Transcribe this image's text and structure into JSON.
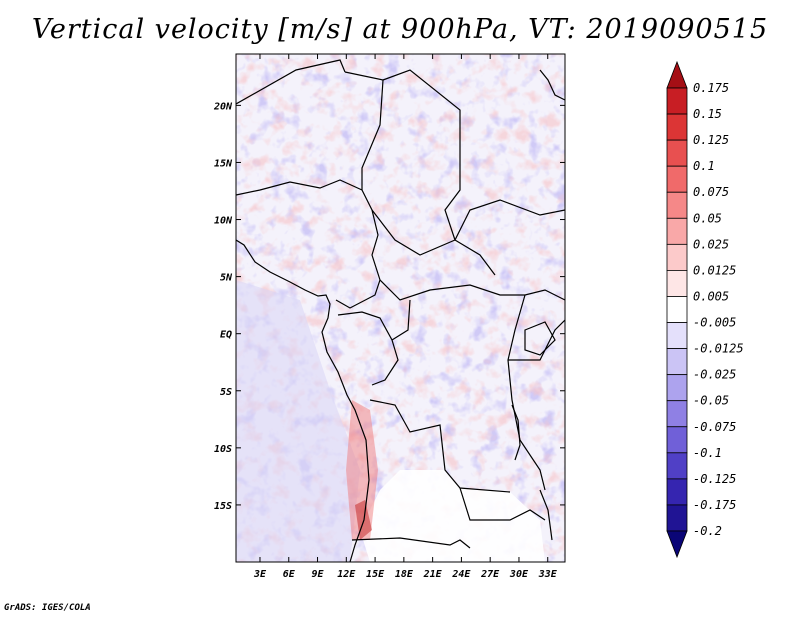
{
  "title": "Vertical velocity [m/s] at 900hPa, VT: 2019090515",
  "credit": "GrADS: IGES/COLA",
  "map": {
    "lat_ticks": [
      {
        "lat": 20,
        "label": "20N"
      },
      {
        "lat": 15,
        "label": "15N"
      },
      {
        "lat": 10,
        "label": "10N"
      },
      {
        "lat": 5,
        "label": "5N"
      },
      {
        "lat": 0,
        "label": "EQ"
      },
      {
        "lat": -5,
        "label": "5S"
      },
      {
        "lat": -10,
        "label": "10S"
      },
      {
        "lat": -15,
        "label": "15S"
      }
    ],
    "lon_ticks": [
      {
        "lon": 3,
        "label": "3E"
      },
      {
        "lon": 6,
        "label": "6E"
      },
      {
        "lon": 9,
        "label": "9E"
      },
      {
        "lon": 12,
        "label": "12E"
      },
      {
        "lon": 15,
        "label": "15E"
      },
      {
        "lon": 18,
        "label": "18E"
      },
      {
        "lon": 21,
        "label": "21E"
      },
      {
        "lon": 24,
        "label": "24E"
      },
      {
        "lon": 27,
        "label": "27E"
      },
      {
        "lon": 30,
        "label": "30E"
      },
      {
        "lon": 33,
        "label": "33E"
      }
    ],
    "lon_range": [
      0.5,
      34.8
    ],
    "lat_range": [
      -20,
      24.5
    ]
  },
  "colorbar": {
    "labels": [
      "0.175",
      "0.15",
      "0.125",
      "0.1",
      "0.075",
      "0.05",
      "0.025",
      "0.0125",
      "0.005",
      "-0.005",
      "-0.0125",
      "-0.025",
      "-0.05",
      "-0.075",
      "-0.1",
      "-0.125",
      "-0.175",
      "-0.2"
    ],
    "colors": [
      "#a50f15",
      "#c81e24",
      "#dc3535",
      "#e85050",
      "#f06a6a",
      "#f58888",
      "#f9a8a8",
      "#fccaca",
      "#fee6e6",
      "#ffffff",
      "#e4e0fb",
      "#cbc4f5",
      "#ada3ee",
      "#8f80e4",
      "#7060d8",
      "#5040c6",
      "#3525b0",
      "#201494",
      "#0a0577"
    ]
  }
}
